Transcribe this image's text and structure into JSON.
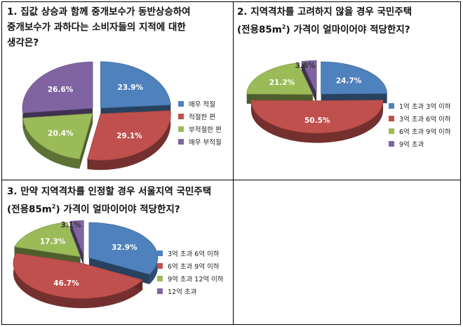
{
  "chart_data": [
    {
      "type": "pie",
      "title_line1": "1. 집값 상승과 함께 중개보수가 동반상승하여",
      "title_line2": "중개보수가 과하다는 소비자들의 지적에 대한",
      "title_line3": "생각은?",
      "categories": [
        "매우 적절",
        "적절한 편",
        "부적절한 편",
        "매우 부적절"
      ],
      "values": [
        23.9,
        29.1,
        20.4,
        26.6
      ],
      "labels": [
        "23.9%",
        "29.1%",
        "20.4%",
        "26.6%"
      ],
      "legend": "right",
      "colors": [
        "#4F81BD",
        "#C0504D",
        "#9BBB59",
        "#8064A2"
      ]
    },
    {
      "type": "pie",
      "title_line1": "2. 지역격차를 고려하지 않을 경우 국민주택",
      "title_line2_pre": "(전용85m",
      "title_line2_sup": "2",
      "title_line2_post": ") 가격이 얼마이어야 적당한지?",
      "categories": [
        "1억 초과 3억 이하",
        "3억 초과 6억 이하",
        "6억 초과 9억 이하",
        "9억 초과"
      ],
      "values": [
        24.7,
        50.5,
        21.2,
        3.6
      ],
      "labels": [
        "24.7%",
        "50.5%",
        "21.2%",
        "3.6%"
      ],
      "legend": "right",
      "colors": [
        "#4F81BD",
        "#C0504D",
        "#9BBB59",
        "#8064A2"
      ]
    },
    {
      "type": "pie",
      "title_line1": "3. 만약 지역격차를 인정할 경우 서울지역 국민주택",
      "title_line2_pre": "(전용85m",
      "title_line2_sup": "2",
      "title_line2_post": ") 가격이 얼마이어야 적당한지?",
      "categories": [
        "3억 초과 6억 이하",
        "6억 초과 9억 이하",
        "9억 초과 12억 이하",
        "12억 초과"
      ],
      "values": [
        32.9,
        46.7,
        17.3,
        3.1
      ],
      "labels": [
        "32.9%",
        "46.7%",
        "17.3%",
        "3.1%"
      ],
      "legend": "right",
      "colors": [
        "#4F81BD",
        "#C0504D",
        "#9BBB59",
        "#8064A2"
      ]
    }
  ]
}
